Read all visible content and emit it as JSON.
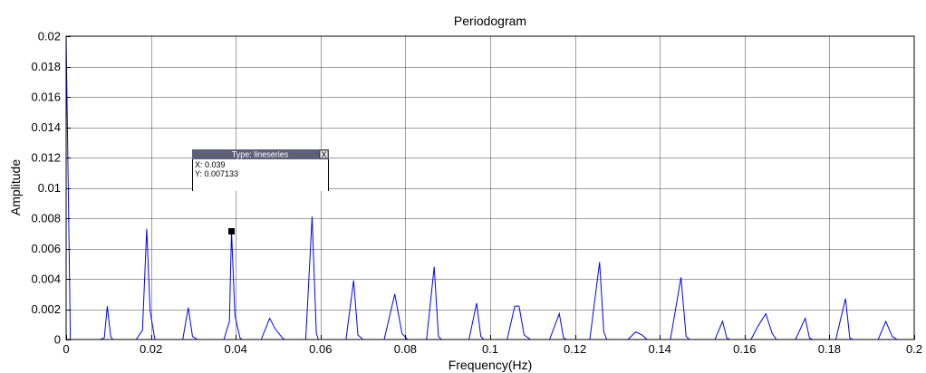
{
  "chart_data": {
    "type": "line",
    "title": "Periodogram",
    "xlabel": "Frequency(Hz)",
    "ylabel": "Amplitude",
    "xlim": [
      0,
      0.2
    ],
    "ylim": [
      0,
      0.02
    ],
    "grid": true,
    "xticks": [
      0,
      0.02,
      0.04,
      0.06,
      0.08,
      0.1,
      0.12,
      0.14,
      0.16,
      0.18,
      0.2
    ],
    "xtick_labels": [
      "0",
      "0.02",
      "0.04",
      "0.06",
      "0.08",
      "0.1",
      "0.12",
      "0.14",
      "0.16",
      "0.18",
      "0.2"
    ],
    "yticks": [
      0,
      0.002,
      0.004,
      0.006,
      0.008,
      0.01,
      0.012,
      0.014,
      0.016,
      0.018,
      0.02
    ],
    "ytick_labels": [
      "0",
      "0.002",
      "0.004",
      "0.006",
      "0.008",
      "0.01",
      "0.012",
      "0.014",
      "0.016",
      "0.018",
      "0.02"
    ],
    "series": [
      {
        "color": "#0000ff",
        "points": [
          [
            0,
            0.02
          ],
          [
            0.001,
            0
          ],
          [
            0.008,
            0
          ],
          [
            0.009,
            0.0001
          ],
          [
            0.0097,
            0.0022
          ],
          [
            0.0105,
            0.0002
          ],
          [
            0.011,
            0
          ],
          [
            0.0165,
            0
          ],
          [
            0.018,
            0.0006
          ],
          [
            0.019,
            0.0073
          ],
          [
            0.0198,
            0.0019
          ],
          [
            0.0208,
            0.0002
          ],
          [
            0.021,
            0
          ],
          [
            0.0275,
            0
          ],
          [
            0.0288,
            0.0021
          ],
          [
            0.0298,
            0.0002
          ],
          [
            0.031,
            0
          ],
          [
            0.0372,
            0
          ],
          [
            0.0385,
            0.0012
          ],
          [
            0.039,
            0.007133
          ],
          [
            0.0398,
            0.0016
          ],
          [
            0.041,
            0.0001
          ],
          [
            0.0415,
            0
          ],
          [
            0.046,
            0
          ],
          [
            0.048,
            0.0014
          ],
          [
            0.0493,
            0.0007
          ],
          [
            0.051,
            0.0001
          ],
          [
            0.0515,
            0
          ],
          [
            0.0565,
            0
          ],
          [
            0.058,
            0.0081
          ],
          [
            0.059,
            0.0004
          ],
          [
            0.0595,
            0
          ],
          [
            0.066,
            0
          ],
          [
            0.0678,
            0.0039
          ],
          [
            0.0688,
            0.0003
          ],
          [
            0.07,
            0
          ],
          [
            0.075,
            0
          ],
          [
            0.0775,
            0.003
          ],
          [
            0.0792,
            0.0004
          ],
          [
            0.0805,
            0
          ],
          [
            0.085,
            0
          ],
          [
            0.0868,
            0.0048
          ],
          [
            0.0878,
            0.0002
          ],
          [
            0.0885,
            0
          ],
          [
            0.095,
            0
          ],
          [
            0.0968,
            0.0024
          ],
          [
            0.0978,
            0.0002
          ],
          [
            0.0985,
            0
          ],
          [
            0.104,
            0
          ],
          [
            0.1058,
            0.0022
          ],
          [
            0.1068,
            0.0022
          ],
          [
            0.108,
            0.0003
          ],
          [
            0.109,
            0.0001
          ],
          [
            0.1095,
            0
          ],
          [
            0.114,
            0
          ],
          [
            0.1163,
            0.0017
          ],
          [
            0.1173,
            0.0001
          ],
          [
            0.118,
            0
          ],
          [
            0.1235,
            0
          ],
          [
            0.1258,
            0.0051
          ],
          [
            0.1268,
            0.0005
          ],
          [
            0.1275,
            0
          ],
          [
            0.1325,
            0
          ],
          [
            0.1343,
            0.0005
          ],
          [
            0.1358,
            0.0003
          ],
          [
            0.137,
            0
          ],
          [
            0.1425,
            0
          ],
          [
            0.145,
            0.0041
          ],
          [
            0.1462,
            0.0002
          ],
          [
            0.147,
            0
          ],
          [
            0.153,
            0
          ],
          [
            0.1548,
            0.0012
          ],
          [
            0.1558,
            0.0001
          ],
          [
            0.1565,
            0
          ],
          [
            0.1615,
            0
          ],
          [
            0.1632,
            0.0009
          ],
          [
            0.165,
            0.0017
          ],
          [
            0.1665,
            0.0004
          ],
          [
            0.1675,
            0
          ],
          [
            0.172,
            0
          ],
          [
            0.1743,
            0.0014
          ],
          [
            0.1753,
            0.0001
          ],
          [
            0.176,
            0
          ],
          [
            0.1815,
            0
          ],
          [
            0.1838,
            0.0027
          ],
          [
            0.1848,
            0.0001
          ],
          [
            0.1855,
            0
          ],
          [
            0.1915,
            0
          ],
          [
            0.1933,
            0.0012
          ],
          [
            0.1948,
            0.0002
          ],
          [
            0.196,
            0
          ],
          [
            0.2,
            0
          ]
        ]
      }
    ],
    "datatip": {
      "title": "Type: lineseries",
      "close_label": "X",
      "x_text": "X: 0.039",
      "y_text": "Y: 0.007133",
      "x": 0.039,
      "y": 0.007133
    }
  }
}
